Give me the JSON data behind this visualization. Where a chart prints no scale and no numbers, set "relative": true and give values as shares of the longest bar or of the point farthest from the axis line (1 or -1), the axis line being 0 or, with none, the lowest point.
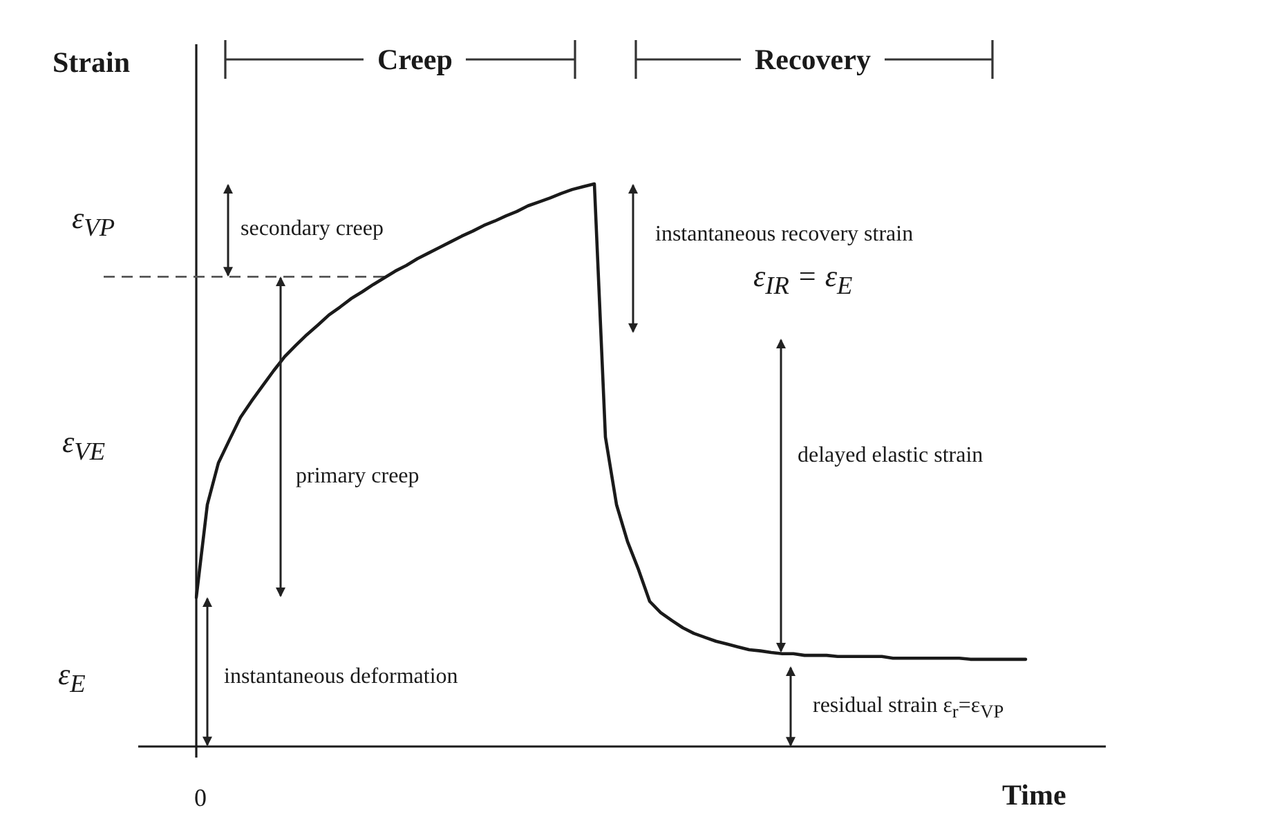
{
  "chart_data": {
    "type": "line",
    "relative": true,
    "ylabel": "Strain",
    "xlabel": "Time",
    "annotations": [
      "Creep",
      "Recovery",
      "ε$_{VP}$",
      "ε$_{VE}$",
      "ε$_{E}$",
      "secondary creep",
      "primary creep",
      "instantaneous deformation",
      "instantaneous recovery strain",
      "ε$_{IR}$ = ε$_{E}$",
      "delayed elastic strain",
      "residual strain ε$_{r}$=ε$_{VP}$",
      "0"
    ],
    "categories": [
      null,
      null,
      null,
      null,
      null,
      null,
      null,
      null,
      null,
      null,
      null,
      null,
      null,
      null,
      null,
      null,
      null,
      null,
      null,
      null,
      null,
      null,
      null,
      null,
      null,
      null,
      null,
      null,
      null,
      null,
      null,
      null,
      null,
      null,
      null,
      null,
      null,
      null,
      null,
      null,
      null,
      null,
      null,
      null,
      null,
      null,
      null,
      null,
      null,
      null,
      null,
      null,
      null,
      null,
      null,
      null,
      null,
      null,
      null,
      null,
      null,
      null,
      null,
      null,
      null,
      null,
      null,
      null,
      null,
      null,
      null,
      null,
      null,
      null,
      null,
      null,
      null,
      null,
      null,
      null,
      null,
      null,
      null
    ],
    "series": [
      {
        "color": "#1a1a1a",
        "values": [
          0.265,
          0.43,
          0.504,
          0.545,
          0.585,
          0.614,
          0.641,
          0.668,
          0.693,
          0.713,
          0.732,
          0.749,
          0.767,
          0.781,
          0.796,
          0.808,
          0.821,
          0.833,
          0.845,
          0.855,
          0.867,
          0.877,
          0.887,
          0.897,
          0.907,
          0.916,
          0.926,
          0.934,
          0.943,
          0.951,
          0.961,
          0.968,
          0.975,
          0.983,
          0.99,
          0.995,
          1,
          0.55,
          0.43,
          0.364,
          0.314,
          0.258,
          0.238,
          0.224,
          0.211,
          0.201,
          0.194,
          0.187,
          0.182,
          0.177,
          0.172,
          0.17,
          0.167,
          0.165,
          0.165,
          0.162,
          0.162,
          0.162,
          0.16,
          0.16,
          0.16,
          0.16,
          0.16,
          0.157,
          0.157,
          0.157,
          0.157,
          0.157,
          0.157,
          0.157,
          0.155,
          0.155,
          0.155,
          0.155,
          0.155,
          0.155,
          null,
          null,
          null,
          null,
          null,
          null,
          null
        ]
      }
    ],
    "ref_lines": [
      {
        "axis": "y",
        "value": 0.835,
        "line_style": "dashed",
        "color": "#555555"
      }
    ]
  }
}
